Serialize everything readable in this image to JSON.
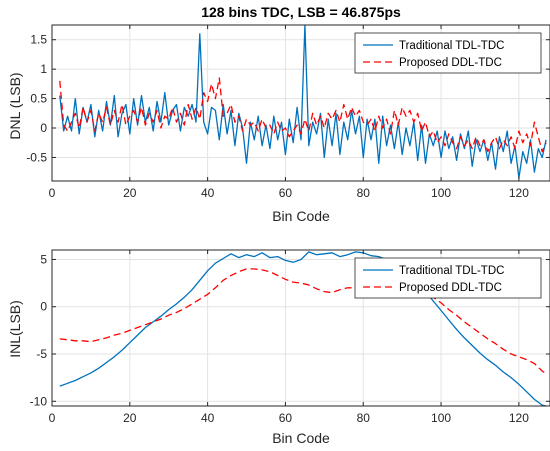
{
  "chart_data": [
    {
      "type": "line",
      "title": "128 bins TDC, LSB = 46.875ps",
      "xlabel": "Bin Code",
      "ylabel": "DNL (LSB)",
      "xlim": [
        0,
        128
      ],
      "ylim": [
        -0.9,
        1.75
      ],
      "xticks": [
        0,
        20,
        40,
        60,
        80,
        100,
        120
      ],
      "yticks": [
        -0.5,
        0,
        0.5,
        1,
        1.5
      ],
      "grid": true,
      "legend_position": "top-right",
      "series": [
        {
          "name": "Traditional TDL-TDC",
          "color": "#0072BD",
          "style": "solid",
          "x": [
            2,
            3,
            4,
            5,
            6,
            7,
            8,
            9,
            10,
            11,
            12,
            13,
            14,
            15,
            16,
            17,
            18,
            19,
            20,
            21,
            22,
            23,
            24,
            25,
            26,
            27,
            28,
            29,
            30,
            31,
            32,
            33,
            34,
            35,
            36,
            37,
            38,
            39,
            40,
            41,
            42,
            43,
            44,
            45,
            46,
            47,
            48,
            49,
            50,
            51,
            52,
            53,
            54,
            55,
            56,
            57,
            58,
            59,
            60,
            61,
            62,
            63,
            64,
            65,
            66,
            67,
            68,
            69,
            70,
            71,
            72,
            73,
            74,
            75,
            76,
            77,
            78,
            79,
            80,
            81,
            82,
            83,
            84,
            85,
            86,
            87,
            88,
            89,
            90,
            91,
            92,
            93,
            94,
            95,
            96,
            97,
            98,
            99,
            100,
            101,
            102,
            103,
            104,
            105,
            106,
            107,
            108,
            109,
            110,
            111,
            112,
            113,
            114,
            115,
            116,
            117,
            118,
            119,
            120,
            121,
            122,
            123,
            124,
            125,
            126,
            127
          ],
          "y": [
            0.55,
            -0.05,
            0.2,
            -0.05,
            0.5,
            -0.1,
            0.35,
            0.1,
            0.4,
            -0.15,
            0.3,
            -0.05,
            0.45,
            0.05,
            0.55,
            -0.15,
            0.25,
            0.4,
            -0.1,
            0.5,
            0.05,
            0.55,
            0.1,
            0.35,
            -0.05,
            0.45,
            0.1,
            0.6,
            0.05,
            0.3,
            0.4,
            -0.05,
            0.35,
            0.2,
            0.4,
            0.1,
            1.6,
            0.1,
            -0.1,
            0.35,
            0.3,
            -0.2,
            0.4,
            -0.1,
            0.3,
            -0.3,
            0.25,
            0.0,
            -0.6,
            0.1,
            -0.2,
            0.2,
            -0.3,
            0.05,
            -0.35,
            0.2,
            -0.2,
            0.1,
            -0.45,
            0.15,
            -0.25,
            0.35,
            -0.2,
            1.75,
            -0.3,
            0.1,
            -0.1,
            0.25,
            -0.5,
            0.15,
            -0.3,
            0.25,
            -0.45,
            0.1,
            -0.2,
            0.3,
            -0.1,
            0.2,
            -0.5,
            0.15,
            -0.2,
            0.15,
            -0.6,
            0.2,
            -0.3,
            0.05,
            -0.35,
            0.1,
            -0.45,
            0.0,
            -0.3,
            0.1,
            -0.55,
            0.05,
            -0.6,
            -0.1,
            -0.3,
            -0.05,
            -0.5,
            -0.05,
            -0.35,
            -0.15,
            -0.55,
            -0.1,
            -0.35,
            -0.05,
            -0.65,
            -0.2,
            -0.4,
            -0.2,
            -0.55,
            -0.25,
            -0.7,
            -0.15,
            -0.4,
            -0.05,
            -0.6,
            -0.3,
            -0.85,
            -0.4,
            -0.6,
            -0.2,
            -0.75,
            -0.35,
            -0.5,
            -0.2
          ]
        },
        {
          "name": "Proposed DDL-TDC",
          "color": "#FF0000",
          "style": "dashed",
          "x": [
            2,
            3,
            4,
            5,
            6,
            7,
            8,
            9,
            10,
            11,
            12,
            13,
            14,
            15,
            16,
            17,
            18,
            19,
            20,
            21,
            22,
            23,
            24,
            25,
            26,
            27,
            28,
            29,
            30,
            31,
            32,
            33,
            34,
            35,
            36,
            37,
            38,
            39,
            40,
            41,
            42,
            43,
            44,
            45,
            46,
            47,
            48,
            49,
            50,
            51,
            52,
            53,
            54,
            55,
            56,
            57,
            58,
            59,
            60,
            61,
            62,
            63,
            64,
            65,
            66,
            67,
            68,
            69,
            70,
            71,
            72,
            73,
            74,
            75,
            76,
            77,
            78,
            79,
            80,
            81,
            82,
            83,
            84,
            85,
            86,
            87,
            88,
            89,
            90,
            91,
            92,
            93,
            94,
            95,
            96,
            97,
            98,
            99,
            100,
            101,
            102,
            103,
            104,
            105,
            106,
            107,
            108,
            109,
            110,
            111,
            112,
            113,
            114,
            115,
            116,
            117,
            118,
            119,
            120,
            121,
            122,
            123,
            124,
            125,
            126,
            127
          ],
          "y": [
            0.8,
            0.05,
            -0.05,
            0.1,
            0.25,
            0.0,
            0.35,
            0.1,
            0.3,
            -0.05,
            0.25,
            0.1,
            0.35,
            0.05,
            0.3,
            0.1,
            0.4,
            0.05,
            0.2,
            0.3,
            0.1,
            0.35,
            0.05,
            0.25,
            0.1,
            0.3,
            0.0,
            0.2,
            0.15,
            0.35,
            0.1,
            0.25,
            0.05,
            0.4,
            0.15,
            0.35,
            0.15,
            0.6,
            0.45,
            0.75,
            0.5,
            0.85,
            0.2,
            0.25,
            0.4,
            0.1,
            0.2,
            -0.05,
            0.15,
            0.05,
            0.1,
            -0.05,
            0.15,
            0.0,
            0.05,
            -0.1,
            0.1,
            -0.05,
            0.0,
            -0.15,
            -0.05,
            0.05,
            -0.1,
            0.15,
            -0.05,
            0.25,
            0.05,
            0.2,
            0.0,
            0.25,
            0.15,
            0.3,
            0.1,
            0.4,
            0.15,
            0.35,
            0.2,
            0.3,
            0.1,
            0.05,
            0.15,
            -0.05,
            0.2,
            0.0,
            0.15,
            -0.1,
            0.3,
            0.05,
            0.35,
            0.2,
            0.3,
            0.1,
            0.25,
            -0.05,
            0.1,
            -0.15,
            -0.05,
            -0.25,
            -0.15,
            -0.3,
            -0.1,
            -0.25,
            -0.35,
            -0.15,
            -0.3,
            -0.2,
            -0.35,
            -0.15,
            -0.3,
            -0.2,
            -0.4,
            -0.25,
            -0.15,
            -0.35,
            -0.2,
            -0.3,
            -0.15,
            -0.35,
            -0.05,
            -0.25,
            -0.1,
            -0.3,
            0.1,
            -0.15,
            -0.4,
            -0.25
          ]
        }
      ]
    },
    {
      "type": "line",
      "title": "",
      "xlabel": "Bin Code",
      "ylabel": "INL(LSB)",
      "xlim": [
        0,
        128
      ],
      "ylim": [
        -10.5,
        6
      ],
      "xticks": [
        0,
        20,
        40,
        60,
        80,
        100,
        120
      ],
      "yticks": [
        -10,
        -5,
        0,
        5
      ],
      "grid": true,
      "legend_position": "top-right",
      "series": [
        {
          "name": "Traditional TDL-TDC",
          "color": "#0072BD",
          "style": "solid",
          "x": [
            2,
            4,
            6,
            8,
            10,
            12,
            14,
            16,
            18,
            20,
            22,
            24,
            26,
            28,
            30,
            32,
            34,
            36,
            38,
            40,
            42,
            44,
            46,
            48,
            50,
            52,
            54,
            56,
            58,
            60,
            62,
            64,
            66,
            68,
            70,
            72,
            74,
            76,
            78,
            80,
            82,
            84,
            86,
            88,
            90,
            92,
            94,
            96,
            98,
            100,
            102,
            104,
            106,
            108,
            110,
            112,
            114,
            116,
            118,
            120,
            122,
            124,
            126,
            127
          ],
          "y": [
            -8.4,
            -8.1,
            -7.8,
            -7.4,
            -7.0,
            -6.5,
            -5.9,
            -5.3,
            -4.6,
            -3.8,
            -3.0,
            -2.2,
            -1.6,
            -1.0,
            -0.3,
            0.3,
            1.0,
            1.8,
            2.8,
            3.8,
            4.6,
            5.1,
            5.6,
            5.2,
            5.5,
            5.3,
            5.7,
            5.2,
            5.3,
            4.9,
            4.7,
            5.0,
            5.8,
            5.5,
            5.6,
            5.7,
            5.3,
            5.5,
            5.8,
            5.7,
            5.4,
            5.3,
            5.0,
            4.6,
            4.0,
            3.3,
            2.5,
            1.6,
            0.6,
            -0.4,
            -1.4,
            -2.4,
            -3.3,
            -4.1,
            -4.9,
            -5.6,
            -6.2,
            -6.9,
            -7.5,
            -8.2,
            -9.0,
            -9.8,
            -10.4,
            -10.5
          ]
        },
        {
          "name": "Proposed DDL-TDC",
          "color": "#FF0000",
          "style": "dashed",
          "x": [
            2,
            4,
            6,
            8,
            10,
            12,
            14,
            16,
            18,
            20,
            22,
            24,
            26,
            28,
            30,
            32,
            34,
            36,
            38,
            40,
            42,
            44,
            46,
            48,
            50,
            52,
            54,
            56,
            58,
            60,
            62,
            64,
            66,
            68,
            70,
            72,
            74,
            76,
            78,
            80,
            82,
            84,
            86,
            88,
            90,
            92,
            94,
            96,
            98,
            100,
            102,
            104,
            106,
            108,
            110,
            112,
            114,
            116,
            118,
            120,
            122,
            124,
            126,
            127
          ],
          "y": [
            -3.4,
            -3.5,
            -3.6,
            -3.6,
            -3.7,
            -3.5,
            -3.3,
            -3.0,
            -2.8,
            -2.5,
            -2.2,
            -1.9,
            -1.6,
            -1.3,
            -0.9,
            -0.6,
            -0.2,
            0.3,
            0.8,
            1.3,
            2.0,
            2.8,
            3.3,
            3.7,
            4.0,
            4.0,
            3.9,
            3.7,
            3.3,
            2.9,
            2.6,
            2.5,
            2.3,
            1.9,
            1.6,
            1.5,
            1.8,
            2.0,
            2.0,
            1.9,
            2.1,
            2.3,
            2.5,
            2.4,
            2.2,
            2.0,
            1.8,
            1.5,
            1.0,
            0.4,
            -0.3,
            -0.9,
            -1.6,
            -2.2,
            -2.8,
            -3.4,
            -3.9,
            -4.5,
            -5.0,
            -5.3,
            -5.6,
            -6.0,
            -6.8,
            -7.1
          ]
        }
      ]
    }
  ]
}
